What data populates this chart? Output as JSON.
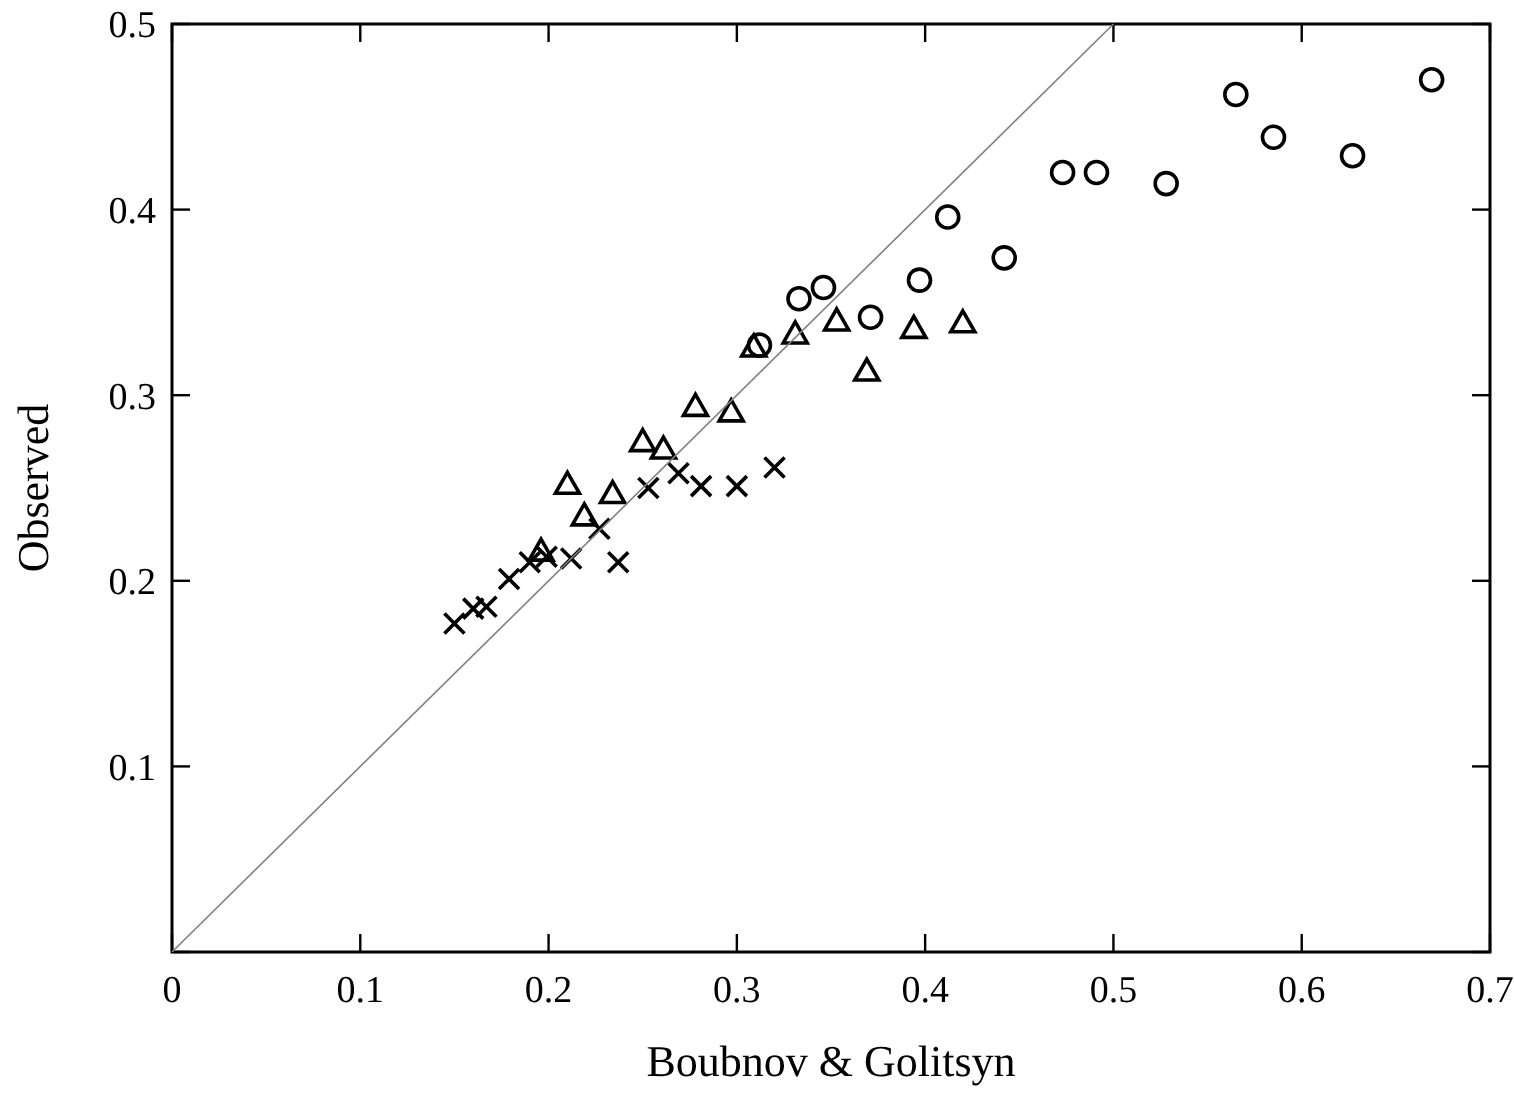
{
  "chart_data": {
    "type": "scatter",
    "xlabel": "Boubnov & Golitsyn",
    "ylabel": "Observed",
    "xlim": [
      0,
      0.7
    ],
    "ylim": [
      0,
      0.5
    ],
    "xticks": [
      0,
      0.1,
      0.2,
      0.3,
      0.4,
      0.5,
      0.6,
      0.7
    ],
    "yticks": [
      {
        "value": 0,
        "label": null
      },
      0.1,
      0.2,
      0.3,
      0.4,
      0.5
    ],
    "grid": false,
    "series": [
      {
        "color": "#000000",
        "marker": "cross",
        "x": [
          0.15,
          0.16,
          0.167,
          0.179,
          0.19,
          0.199,
          0.212,
          0.227,
          0.237,
          0.253,
          0.269,
          0.281,
          0.3,
          0.32
        ],
        "values": [
          0.177,
          0.185,
          0.186,
          0.201,
          0.21,
          0.213,
          0.212,
          0.228,
          0.21,
          0.25,
          0.258,
          0.251,
          0.251,
          0.261
        ]
      },
      {
        "color": "#000000",
        "marker": "triangle",
        "x": [
          0.196,
          0.21,
          0.219,
          0.234,
          0.25,
          0.261,
          0.278,
          0.297,
          0.309,
          0.331,
          0.353,
          0.369,
          0.394,
          0.42
        ],
        "values": [
          0.216,
          0.252,
          0.235,
          0.247,
          0.275,
          0.271,
          0.294,
          0.291,
          0.326,
          0.333,
          0.34,
          0.313,
          0.336,
          0.339
        ]
      },
      {
        "color": "#000000",
        "marker": "circle",
        "x": [
          0.312,
          0.333,
          0.346,
          0.371,
          0.397,
          0.412,
          0.442,
          0.473,
          0.491,
          0.528,
          0.565,
          0.585,
          0.627,
          0.669
        ],
        "values": [
          0.327,
          0.352,
          0.358,
          0.342,
          0.362,
          0.396,
          0.374,
          0.42,
          0.42,
          0.414,
          0.462,
          0.439,
          0.429,
          0.47
        ]
      },
      {
        "type": "line",
        "color": "#808080",
        "marker": "none",
        "line_style": "solid",
        "x": [
          0,
          0.5
        ],
        "values": [
          0,
          0.5
        ]
      }
    ]
  }
}
